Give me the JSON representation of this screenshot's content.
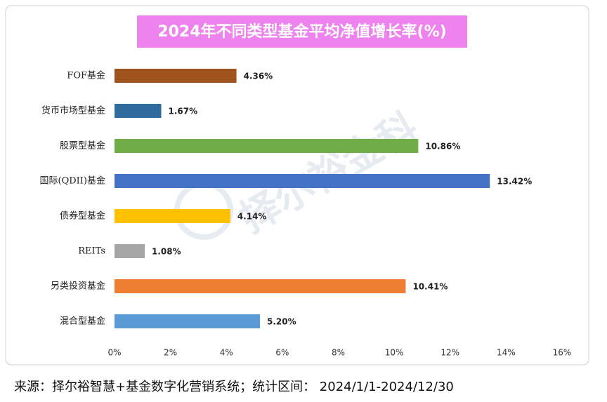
{
  "chart_data": {
    "type": "bar",
    "orientation": "horizontal",
    "title": "2024年不同类型基金平均净值增长率(%)",
    "categories": [
      "FOF基金",
      "货币市场型基金",
      "股票型基金",
      "国际(QDII)基金",
      "债券型基金",
      "REITs",
      "另类投资基金",
      "混合型基金"
    ],
    "values": [
      4.36,
      1.67,
      10.86,
      13.42,
      4.14,
      1.08,
      10.41,
      5.2
    ],
    "value_labels": [
      "4.36%",
      "1.67%",
      "10.86%",
      "13.42%",
      "4.14%",
      "1.08%",
      "10.41%",
      "5.20%"
    ],
    "colors": [
      "#a0521d",
      "#2e6b9e",
      "#70ad47",
      "#4472c4",
      "#ffc000",
      "#a5a5a5",
      "#ed7d31",
      "#5b9bd5"
    ],
    "xlim": [
      0,
      16
    ],
    "xticks": [
      {
        "value": 0,
        "label": "0%"
      },
      {
        "value": 2,
        "label": "2%"
      },
      {
        "value": 4,
        "label": "4%"
      },
      {
        "value": 6,
        "label": "6%"
      },
      {
        "value": 8,
        "label": "8%"
      },
      {
        "value": 10,
        "label": "10%"
      },
      {
        "value": 12,
        "label": "12%"
      },
      {
        "value": 14,
        "label": "14%"
      },
      {
        "value": 16,
        "label": "16%"
      }
    ],
    "grid": false,
    "watermark": "择尔裕金科",
    "source": "来源：择尔裕智慧+基金数字化营销系统；统计区间： 2024/1/1-2024/12/30"
  }
}
